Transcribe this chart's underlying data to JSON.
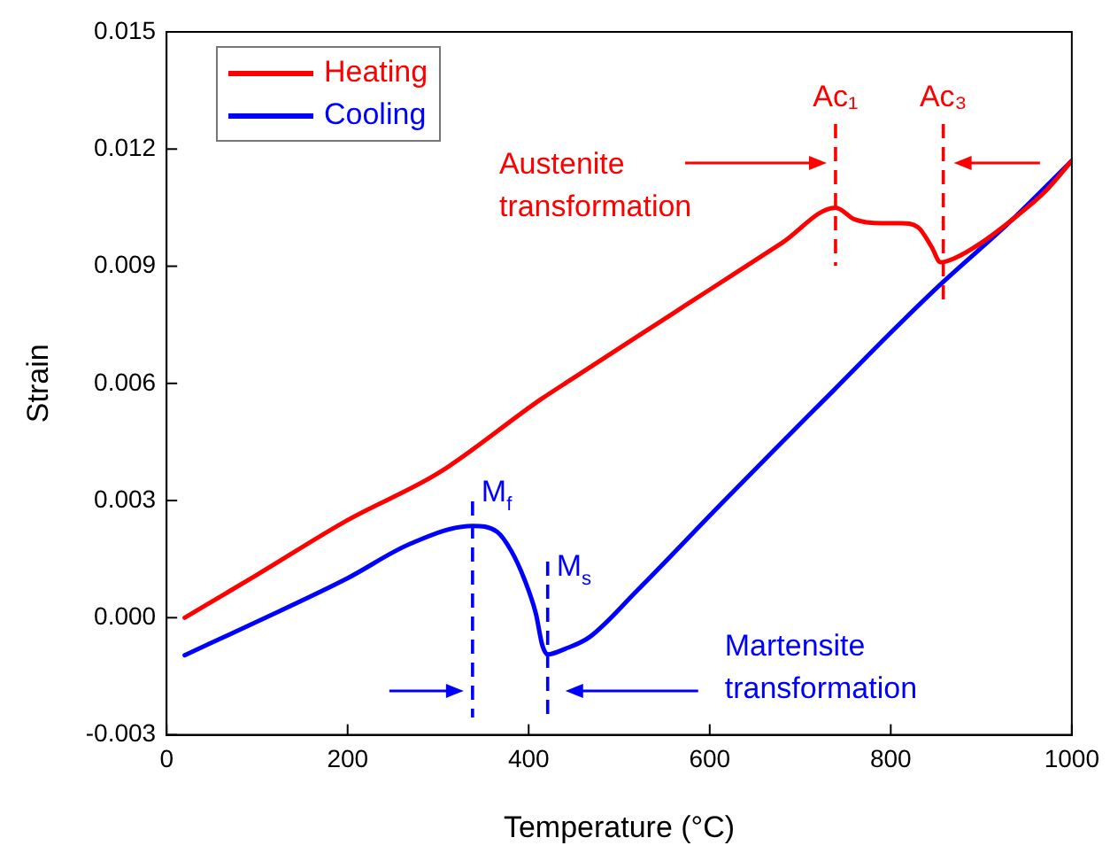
{
  "chart_data": {
    "type": "line",
    "xlabel": "Temperature (°C)",
    "ylabel": "Strain",
    "xlim": [
      0,
      1000
    ],
    "xticks": [
      0,
      200,
      400,
      600,
      800,
      1000
    ],
    "ylim": [
      -0.003,
      0.015
    ],
    "yticks": [
      -0.003,
      {
        "value": 0,
        "label": "0.000"
      },
      0.003,
      0.006,
      0.009,
      0.012,
      0.015
    ],
    "grid": false,
    "legend": "top left",
    "marker": "none",
    "line_style": "solid",
    "series": [
      {
        "name": "Heating",
        "color": "#ff0000",
        "x": [
          20,
          100,
          200,
          300,
          414,
          447,
          520,
          600,
          680,
          739,
          760,
          790,
          811,
          830,
          845,
          855,
          870,
          900,
          940,
          970,
          1000
        ],
        "values": [
          0.0,
          0.0011,
          0.0025,
          0.0037,
          0.0056,
          0.0061,
          0.0072,
          0.0084,
          0.0096,
          0.0105,
          0.0102,
          0.0101,
          0.0101,
          0.01,
          0.0095,
          0.0091,
          0.0092,
          0.0096,
          0.0103,
          0.0109,
          0.0117
        ]
      },
      {
        "name": "Cooling",
        "color": "#0000ff",
        "x": [
          20,
          100,
          199,
          270,
          338,
          365,
          381,
          395,
          408,
          415,
          421,
          440,
          467,
          520,
          612,
          680,
          736,
          800,
          858,
          930,
          1000
        ],
        "values": [
          -0.00096,
          -0.0001,
          0.001,
          0.0019,
          0.00235,
          0.0022,
          0.0017,
          0.001,
          0.0001,
          -0.0007,
          -0.00094,
          -0.0008,
          -0.0005,
          0.0007,
          0.0029,
          0.0045,
          0.0058,
          0.0073,
          0.0086,
          0.0101,
          0.0117
        ]
      }
    ],
    "ref_lines": [
      {
        "axis": "x",
        "value": 739,
        "label": "Ac₁",
        "color": "#ff0000",
        "line_style": "dashed"
      },
      {
        "axis": "x",
        "value": 858,
        "label": "Ac₃",
        "color": "#ff0000",
        "line_style": "dashed"
      },
      {
        "axis": "x",
        "value": 338,
        "label": "M$_{f}$",
        "color": "#0000ff",
        "line_style": "dashed"
      },
      {
        "axis": "x",
        "value": 421,
        "label": "M$_{s}$",
        "color": "#0000ff",
        "line_style": "dashed"
      }
    ],
    "annotations": [
      "Austenite transformation",
      "Martensite transformation"
    ]
  }
}
